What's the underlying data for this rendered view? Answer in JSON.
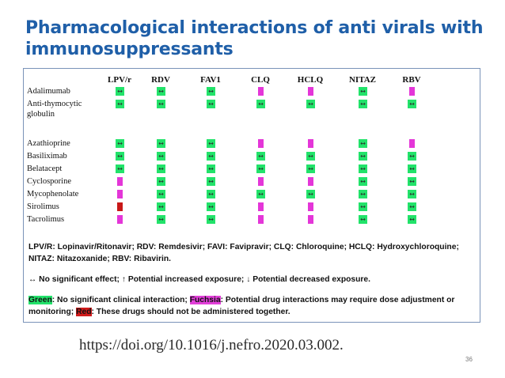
{
  "title": "Pharmacological interactions of anti virals with immunosuppressants",
  "table": {
    "columns": [
      "LPV/r",
      "RDV",
      "FAV1",
      "CLQ",
      "HCLQ",
      "NITAZ",
      "RBV"
    ],
    "rows": [
      {
        "drug": "Adalimumab",
        "cells": [
          "g",
          "g",
          "g",
          "f",
          "f",
          "g",
          "f"
        ]
      },
      {
        "drug": "Anti-thymocytic globulin",
        "cells": [
          "g",
          "g",
          "g",
          "g",
          "g",
          "g",
          "g"
        ]
      },
      {
        "drug": "Azathioprine",
        "cells": [
          "g",
          "g",
          "g",
          "f",
          "f",
          "g",
          "f"
        ]
      },
      {
        "drug": "Basiliximab",
        "cells": [
          "g",
          "g",
          "g",
          "g",
          "g",
          "g",
          "g"
        ]
      },
      {
        "drug": "Belatacept",
        "cells": [
          "g",
          "g",
          "g",
          "g",
          "g",
          "g",
          "g"
        ]
      },
      {
        "drug": "Cyclosporine",
        "cells": [
          "f",
          "g",
          "g",
          "f",
          "f",
          "g",
          "g"
        ]
      },
      {
        "drug": "Mycophenolate",
        "cells": [
          "f",
          "g",
          "g",
          "g",
          "g",
          "g",
          "g"
        ]
      },
      {
        "drug": "Sirolimus",
        "cells": [
          "r",
          "g",
          "g",
          "f",
          "f",
          "g",
          "g"
        ]
      },
      {
        "drug": "Tacrolimus",
        "cells": [
          "f",
          "g",
          "g",
          "f",
          "f",
          "g",
          "g"
        ]
      }
    ],
    "colors": {
      "green": "#22e36a",
      "fuchsia": "#e436d8",
      "red": "#c81818"
    }
  },
  "abbrev": "LPV/R: Lopinavir/Ritonavir; RDV: Remdesivir; FAVI: Favipravir; CLQ: Chloroquine; HCLQ: Hydroxychloroquine; NITAZ: Nitazoxanide; RBV: Ribavirin.",
  "symbols": "↔ No significant effect; ↑ Potential increased exposure; ↓ Potential decreased exposure.",
  "legend": {
    "green_label": "Green",
    "green_text": ": No significant clinical interaction; ",
    "fuchsia_label": "Fuchsia",
    "fuchsia_text": ": Potential drug interactions may require dose adjustment or monitoring; ",
    "red_label": "Red",
    "red_text": ": These drugs should not be administered together."
  },
  "doi": "https://doi.org/10.1016/j.nefro.2020.03.002.",
  "page_number": "36"
}
